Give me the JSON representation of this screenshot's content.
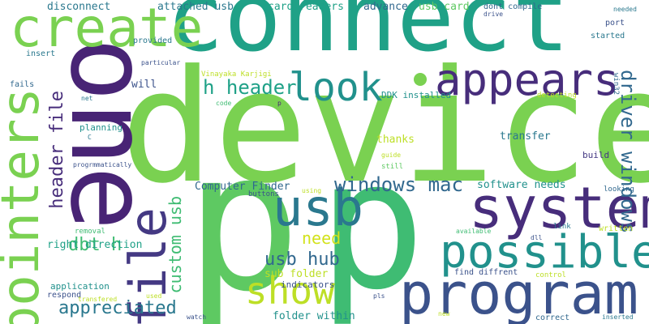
{
  "palette": {
    "green": "#7AD151",
    "green_alt": "#5EC962",
    "green_dark": "#3FBC73",
    "teal": "#1FA187",
    "teal_dark": "#21918C",
    "blue": "#2A788E",
    "blue_dark": "#31688E",
    "indigo": "#3B528B",
    "indigo_dark": "#443983",
    "purple": "#472D7B",
    "violet": "#482475",
    "yellow": "#BDDF26",
    "yellow_light": "#D2E21B"
  },
  "words": {
    "device": "device",
    "p_big": "p",
    "p_mid": "p",
    "connect": "connect",
    "one": "one",
    "create": "create",
    "pointers": "pointers",
    "appears": "appears",
    "system": "system",
    "possible": "possible",
    "program": "program",
    "usb": "usb",
    "file": "file",
    "look": "look",
    "show": "show",
    "driver_windows": "driver windows",
    "windows_mac": "windows mac",
    "h_header": "h header",
    "header_file": "header file",
    "dbt_h": "dbt h",
    "usb_hub": "usb hub",
    "appreciated": "appreciated",
    "custom_usb": "custom usb",
    "need": "need",
    "software_needs": "software needs",
    "right_direction": "right direction",
    "computer_finder": "Computer Finder",
    "folder_within": "folder within",
    "disconnect": "disconnect",
    "attached_usb": "attached usb",
    "card_readers": "card readers",
    "advance": "advance",
    "usb_card": "usb card",
    "dont_compile": "dont compile",
    "needed": "needed",
    "drive": "drive",
    "port": "port",
    "started": "started",
    "provided": "provided",
    "insert": "insert",
    "particular": "particular",
    "vinayaka_karjigi": "Vinayaka Karjigi",
    "win32": "win32",
    "will": "will",
    "fails": "fails",
    "net": "net",
    "code": "code",
    "p_small": "p",
    "ddk_installed": "DDK installed",
    "detecting": "detecting",
    "planning": "planning",
    "c": "C",
    "thanks": "thanks",
    "transfer": "transfer",
    "build": "build",
    "progrmmatically": "progrmmatically",
    "guide": "guide",
    "still": "still",
    "buttons": "buttons",
    "using": "using",
    "looking": "looking",
    "link": "link",
    "available": "available",
    "dll": "dll",
    "written": "written",
    "removal": "removal",
    "sub_folder": "sub folder",
    "find_diffrent": "find diffrent",
    "control": "control",
    "indicators": "indicators",
    "application": "application",
    "respond": "respond",
    "used": "used",
    "transfered": "transfered",
    "pls": "pls",
    "watch": "watch",
    "new": "new",
    "correct": "correct",
    "inserted": "inserted"
  }
}
